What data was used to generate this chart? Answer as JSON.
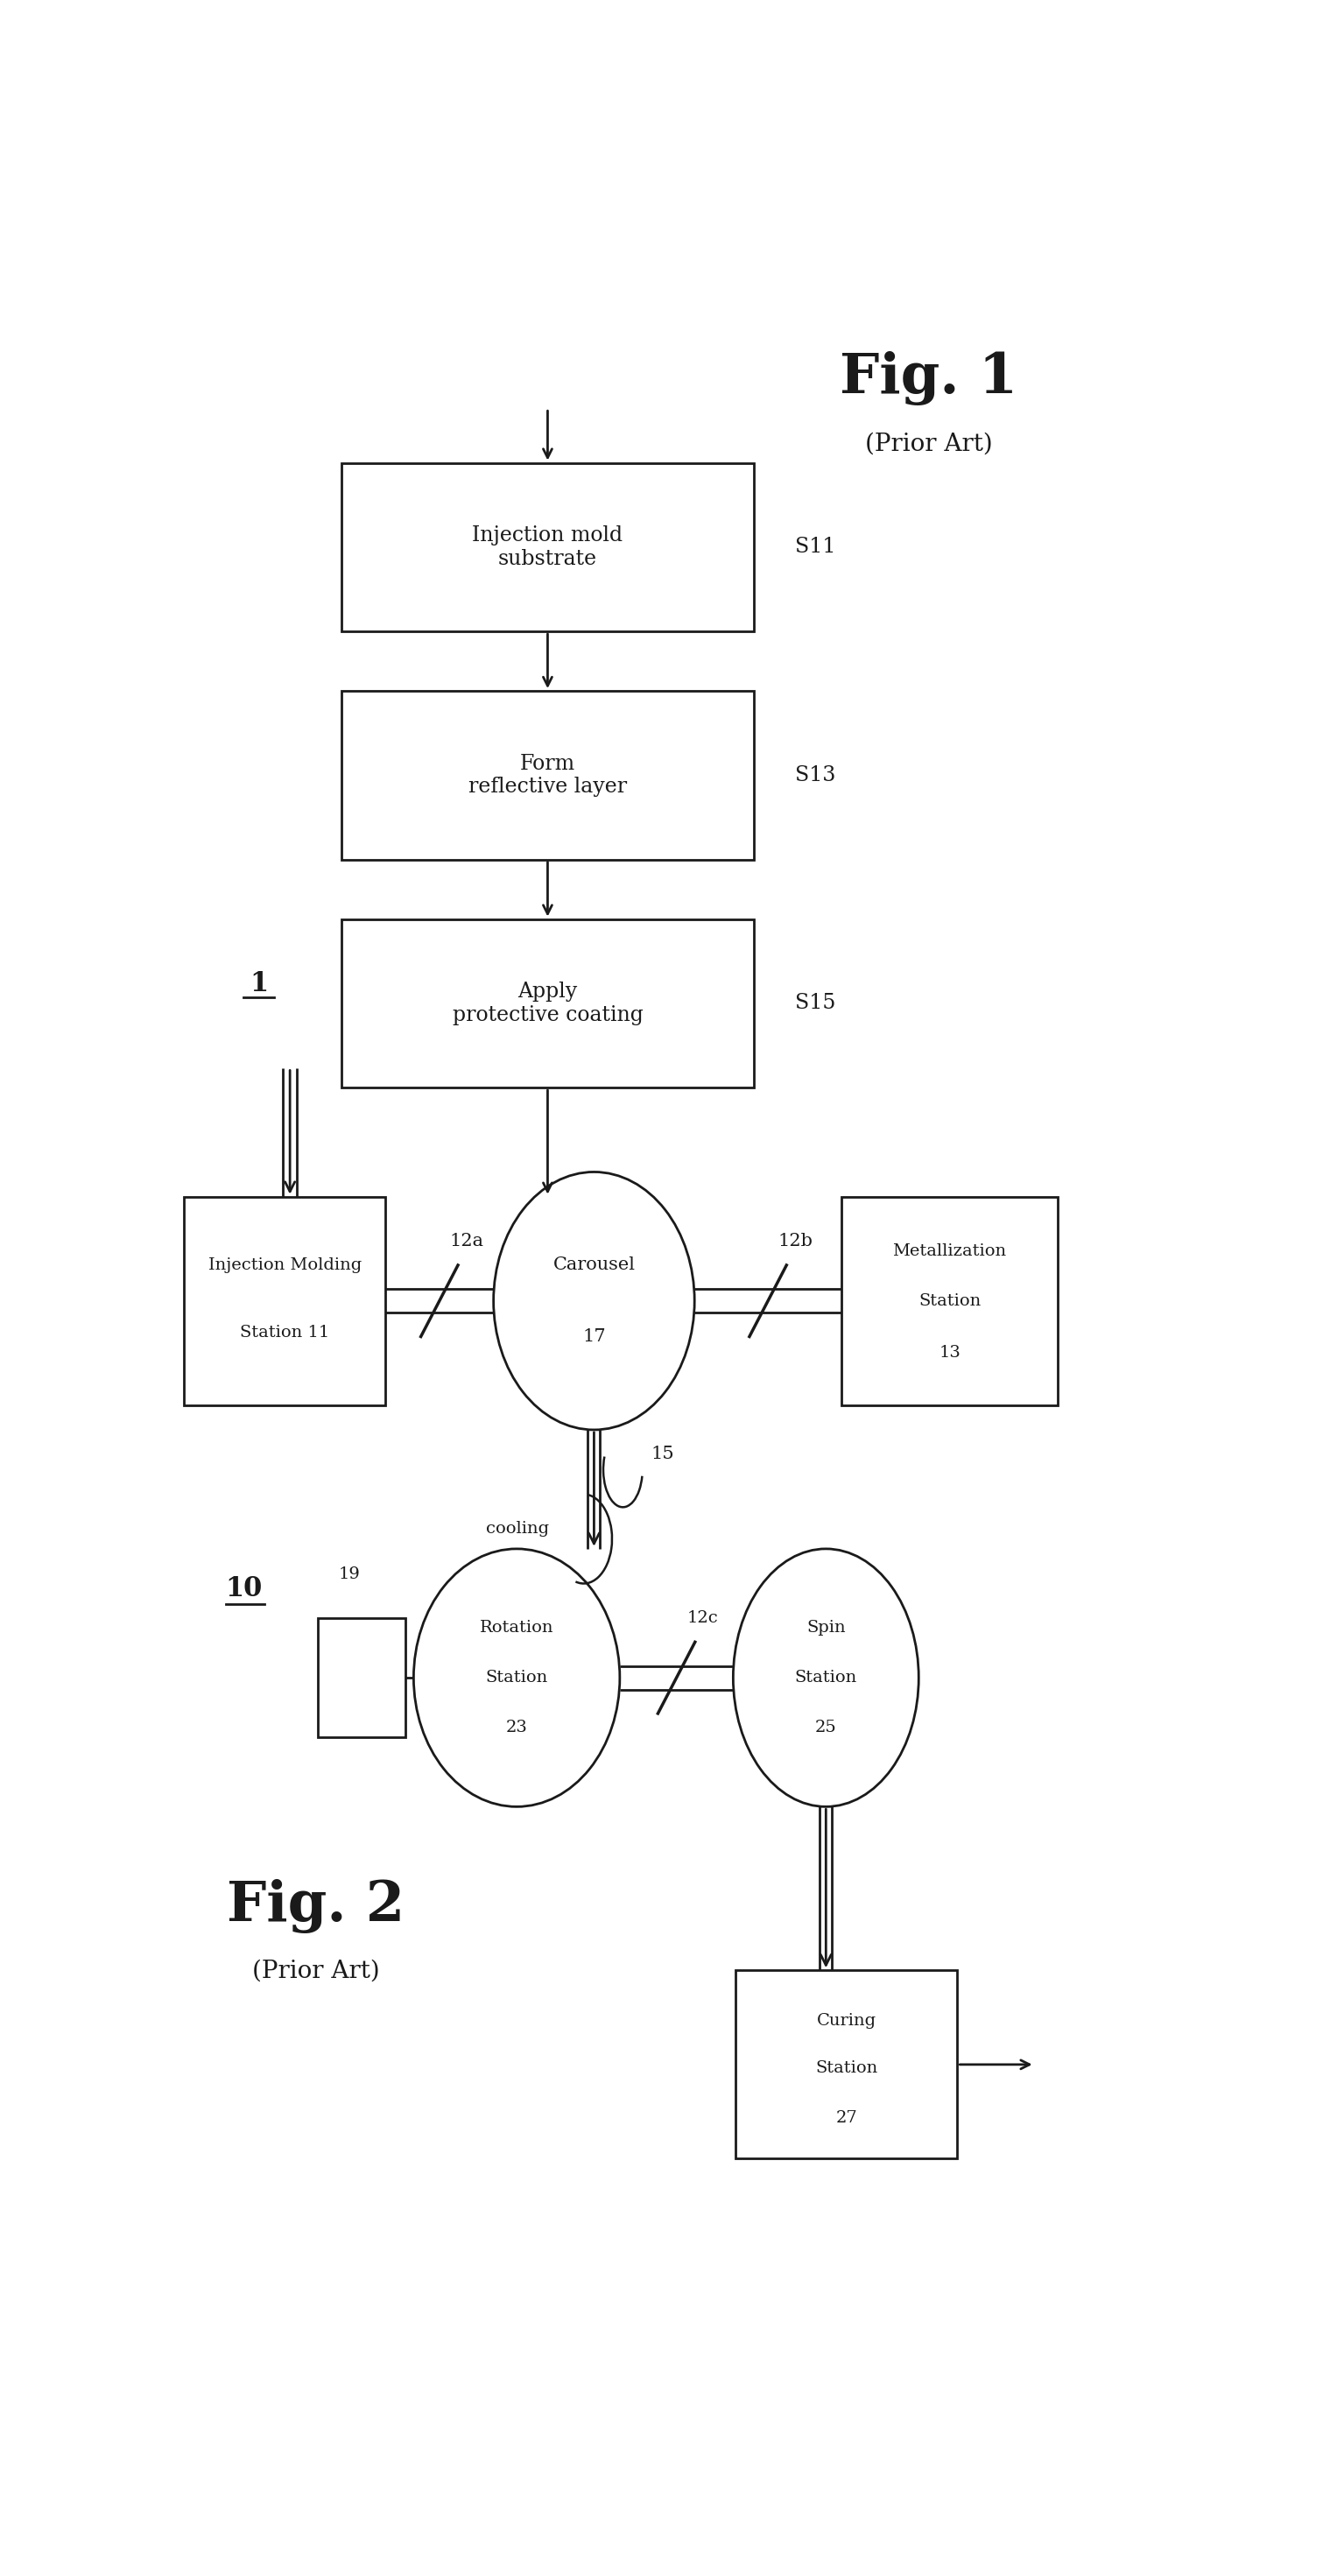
{
  "background_color": "#ffffff",
  "line_color": "#1a1a1a",
  "text_color": "#1a1a1a",
  "fig1_title": "Fig. 1",
  "fig1_subtitle": "(Prior Art)",
  "fig1_label": "1",
  "fig2_title": "Fig. 2",
  "fig2_subtitle": "(Prior Art)",
  "fig2_label": "10",
  "fig1_box1_label": "Injection mold\nsubstrate",
  "fig1_box1_step": "S11",
  "fig1_box2_label": "Form\nreflective layer",
  "fig1_box2_step": "S13",
  "fig1_box3_label": "Apply\nprotective coating",
  "fig1_box3_step": "S15",
  "carousel_label": "Carousel\n17",
  "inj_label": "Injection Molding\nStation 11",
  "met_label": "Metallization\nStation\n13",
  "rot_label": "Rotation\nStation\n23",
  "spin_label": "Spin\nStation\n25",
  "curing_label": "Curing\nStation\n27",
  "label_12a": "12a",
  "label_12b": "12b",
  "label_12c": "12c",
  "label_15": "15",
  "label_cooling": "cooling",
  "label_19": "19"
}
